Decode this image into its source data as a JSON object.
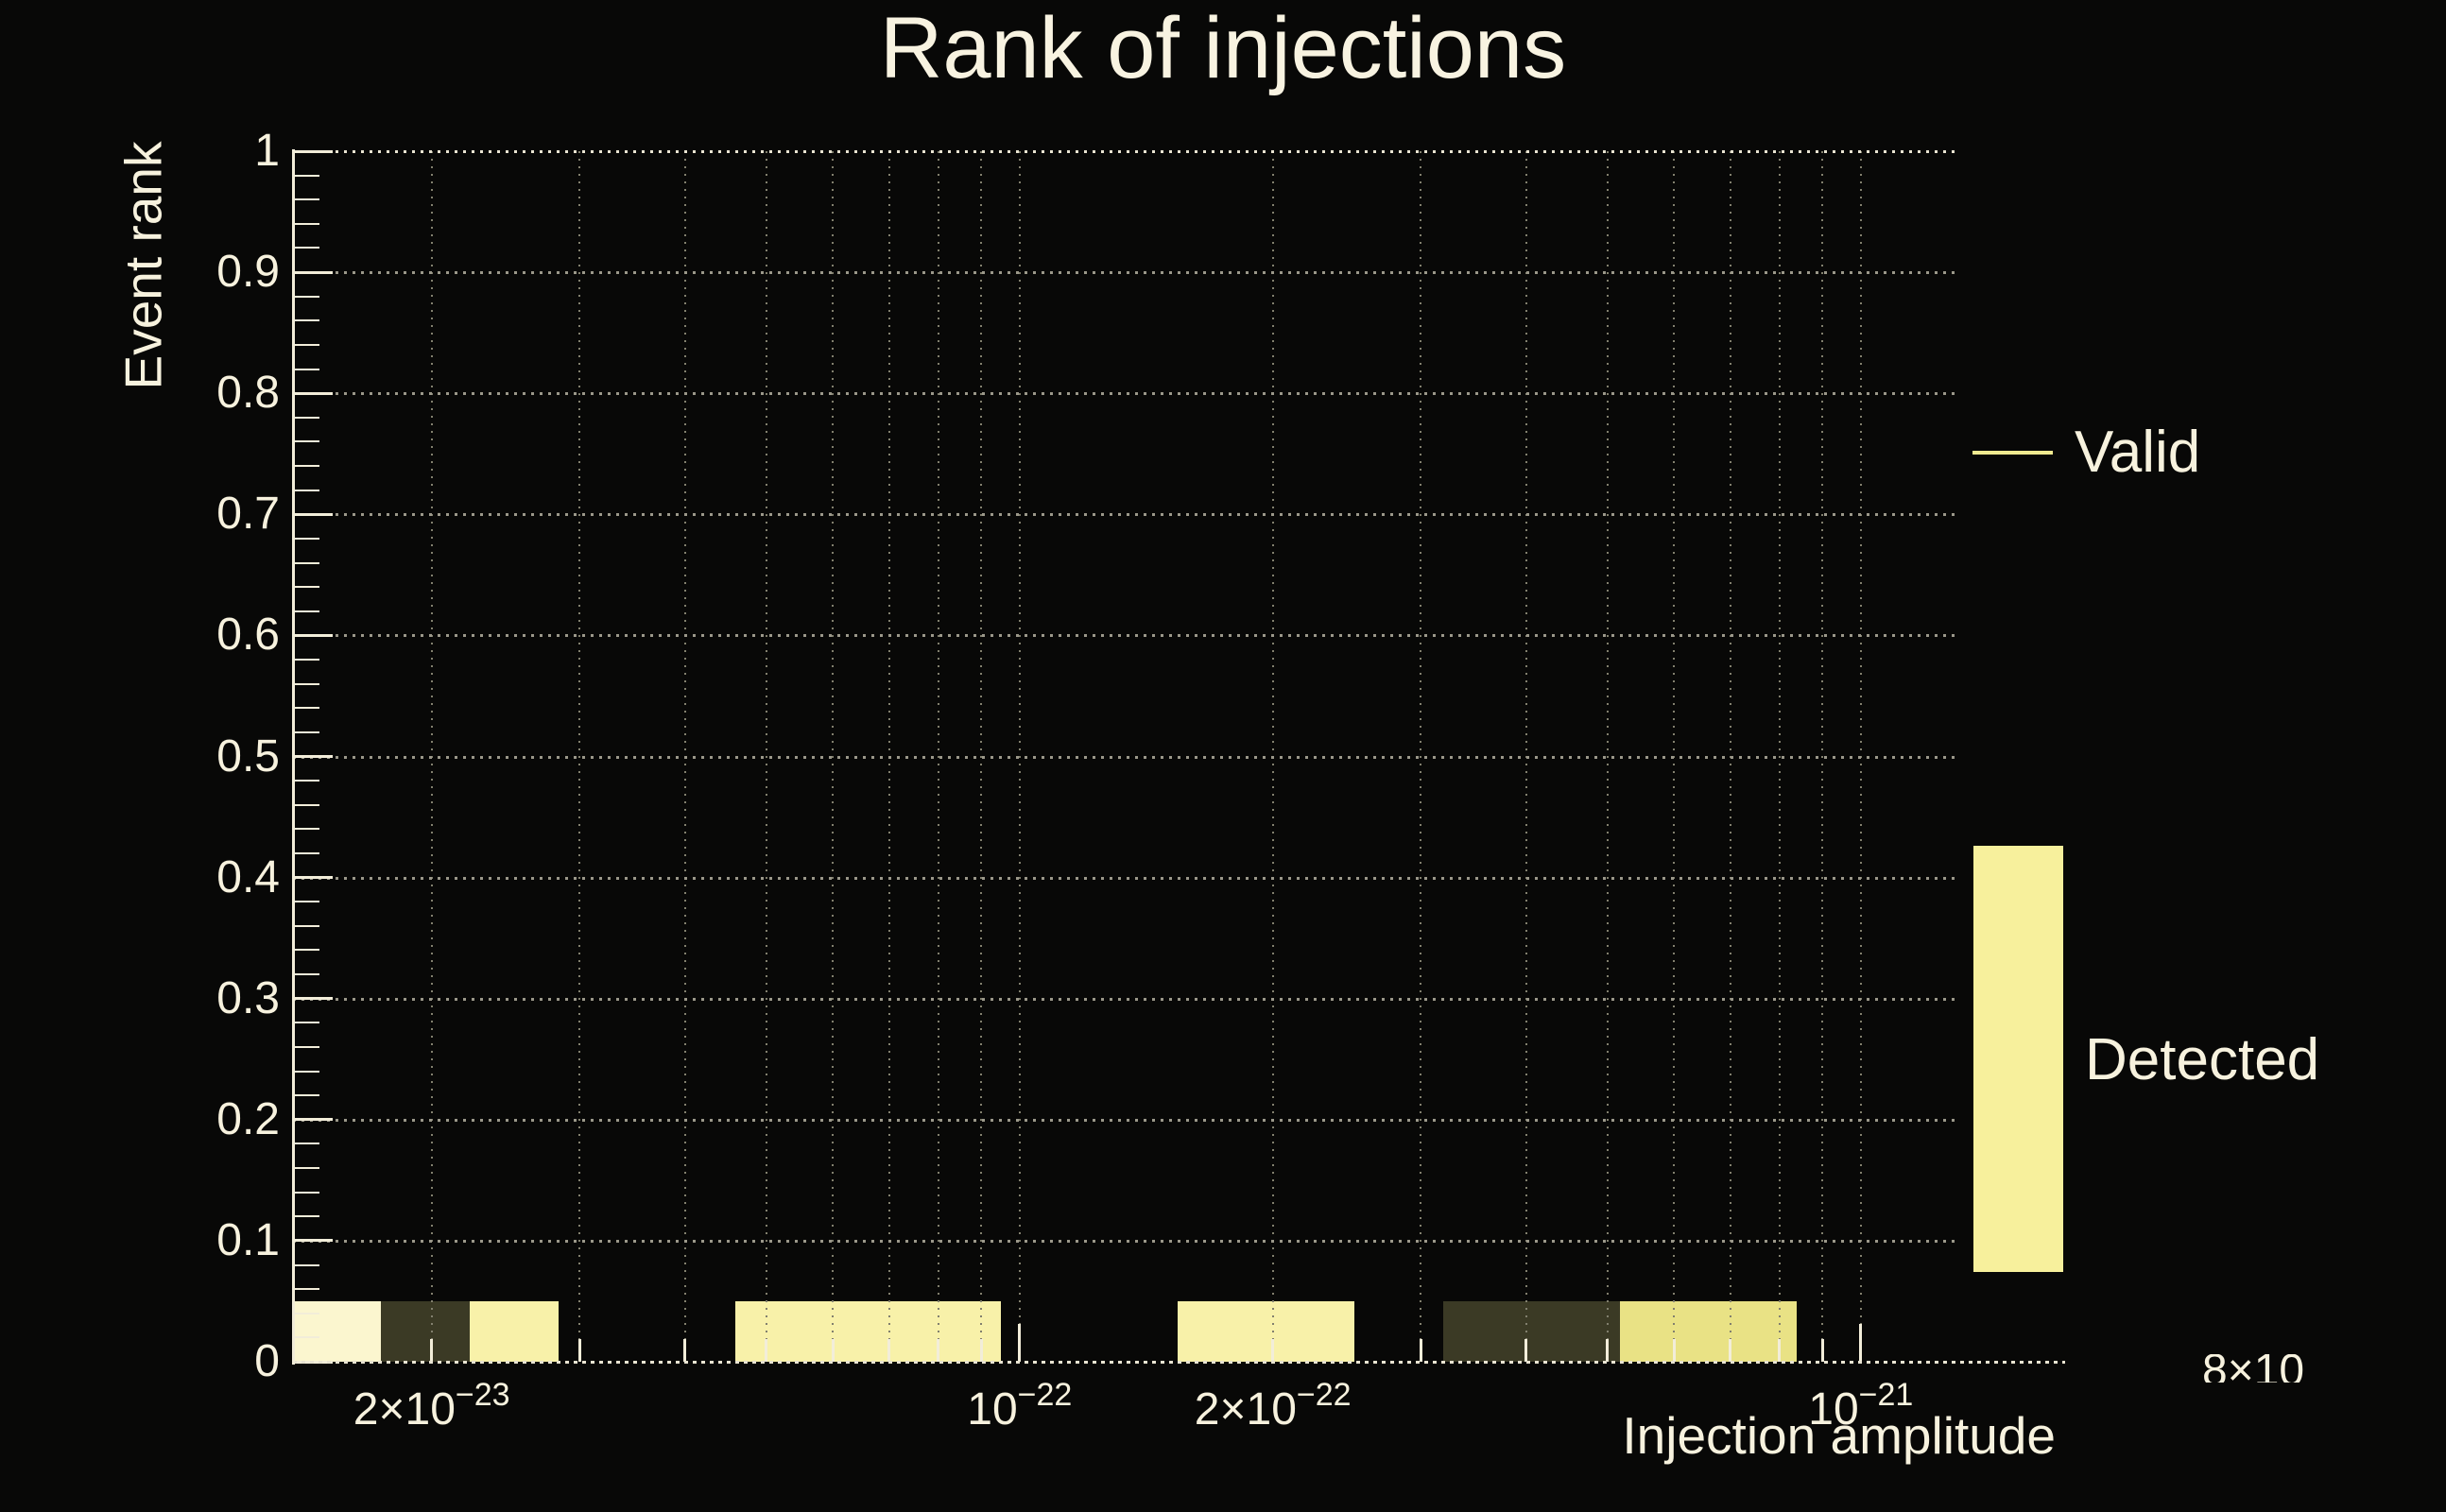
{
  "title": "Rank of injections",
  "legend": {
    "valid_label": "Valid",
    "detected_label": "Detected"
  },
  "axis_overflow": {
    "text": "8×10"
  },
  "colors": {
    "background": "#080807",
    "text": "#f7f2de",
    "axis": "#f2edd9",
    "grid_h": "#9b988a",
    "grid_v": "#82806e",
    "grid_bright": "#e9e4d2",
    "bar_cream": "#fbf6cf",
    "bar_olive": "#3b3a25",
    "bar_yellow": "#f8f1a9",
    "bar_yellow_dim": "#e9e285",
    "valid_line": "#f0ea90",
    "detected_fill": "#f7f09c"
  },
  "chart_data": {
    "type": "bar",
    "title": "Rank of injections",
    "xlabel": "Injection amplitude",
    "ylabel": "Event rank",
    "x_scale": "log",
    "xlim": [
      1.37e-23,
      1.3e-21
    ],
    "ylim": [
      0,
      1
    ],
    "grid": true,
    "legend_position": "right",
    "y_tick_values": [
      0,
      0.1,
      0.2,
      0.3,
      0.4,
      0.5,
      0.6,
      0.7,
      0.8,
      0.9,
      1
    ],
    "y_tick_labels": [
      "0",
      "0.1",
      "0.2",
      "0.3",
      "0.4",
      "0.5",
      "0.6",
      "0.7",
      "0.8",
      "0.9",
      "1"
    ],
    "y_minor_step": 0.02,
    "x_gridline_values": [
      2e-23,
      3e-23,
      4e-23,
      5e-23,
      6e-23,
      7e-23,
      8e-23,
      9e-23,
      1e-22,
      2e-22,
      3e-22,
      4e-22,
      5e-22,
      6e-22,
      7e-22,
      8e-22,
      9e-22,
      1e-21
    ],
    "x_tick_labels": [
      {
        "base": "2×10",
        "sup": "−23",
        "value": 2e-23
      },
      {
        "base": "10",
        "sup": "−22",
        "value": 1e-22
      },
      {
        "base": "2×10",
        "sup": "−22",
        "value": 2e-22
      },
      {
        "base": "10",
        "sup": "−21",
        "value": 1e-21
      }
    ],
    "series": [
      {
        "name": "Valid",
        "style": "line",
        "color_key": "valid_line"
      },
      {
        "name": "Detected",
        "style": "fill",
        "color_key": "detected_fill"
      }
    ],
    "bars": [
      {
        "x0": 1.37e-23,
        "x1": 1.74e-23,
        "y": 0.05,
        "color_key": "bar_cream"
      },
      {
        "x0": 1.74e-23,
        "x1": 2.22e-23,
        "y": 0.05,
        "color_key": "bar_olive"
      },
      {
        "x0": 2.22e-23,
        "x1": 2.83e-23,
        "y": 0.05,
        "color_key": "bar_yellow"
      },
      {
        "x0": 4.59e-23,
        "x1": 9.5e-23,
        "y": 0.05,
        "color_key": "bar_yellow"
      },
      {
        "x0": 1.54e-22,
        "x1": 2.5e-22,
        "y": 0.05,
        "color_key": "bar_yellow"
      },
      {
        "x0": 3.19e-22,
        "x1": 5.17e-22,
        "y": 0.05,
        "color_key": "bar_olive"
      },
      {
        "x0": 5.17e-22,
        "x1": 8.4e-22,
        "y": 0.05,
        "color_key": "bar_yellow_dim"
      }
    ]
  }
}
